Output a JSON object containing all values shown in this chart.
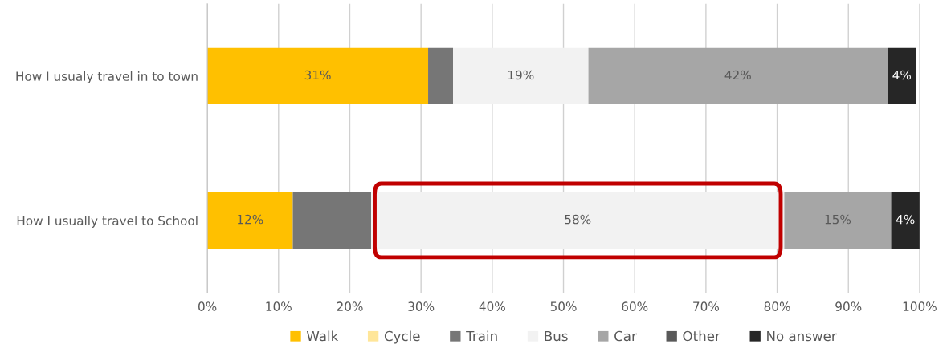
{
  "chart_data": {
    "type": "bar",
    "orientation": "horizontal",
    "stacked": true,
    "categories": [
      "How I usualy travel in to town",
      "How I usually travel to School"
    ],
    "series": [
      {
        "name": "Walk",
        "color": "#ffc000",
        "values": [
          31,
          12
        ],
        "value_labels": [
          "31%",
          "12%"
        ]
      },
      {
        "name": "Cycle",
        "color": "#ffe699",
        "values": [
          null,
          null
        ]
      },
      {
        "name": "Train",
        "color": "#767676",
        "values": [
          3.5,
          11
        ],
        "value_labels": [
          null,
          null
        ]
      },
      {
        "name": "Bus",
        "color": "#f2f2f2",
        "values": [
          19,
          58
        ],
        "value_labels": [
          "19%",
          "58%"
        ]
      },
      {
        "name": "Car",
        "color": "#a6a6a6",
        "values": [
          42,
          15
        ],
        "value_labels": [
          "42%",
          "15%"
        ]
      },
      {
        "name": "Other",
        "color": "#595959",
        "values": [
          null,
          null
        ]
      },
      {
        "name": "No answer",
        "color": "#262626",
        "values": [
          4,
          4
        ],
        "value_labels": [
          "4%",
          "4%"
        ]
      }
    ],
    "xlim": [
      0,
      100
    ],
    "xticks": [
      {
        "value": 0,
        "label": "0%"
      },
      {
        "value": 10,
        "label": "10%"
      },
      {
        "value": 20,
        "label": "20%"
      },
      {
        "value": 30,
        "label": "30%"
      },
      {
        "value": 40,
        "label": "40%"
      },
      {
        "value": 50,
        "label": "50%"
      },
      {
        "value": 60,
        "label": "60%"
      },
      {
        "value": 70,
        "label": "70%"
      },
      {
        "value": 80,
        "label": "80%"
      },
      {
        "value": 90,
        "label": "90%"
      },
      {
        "value": 100,
        "label": "100%"
      }
    ],
    "grid": "x",
    "legend": "bottom"
  }
}
